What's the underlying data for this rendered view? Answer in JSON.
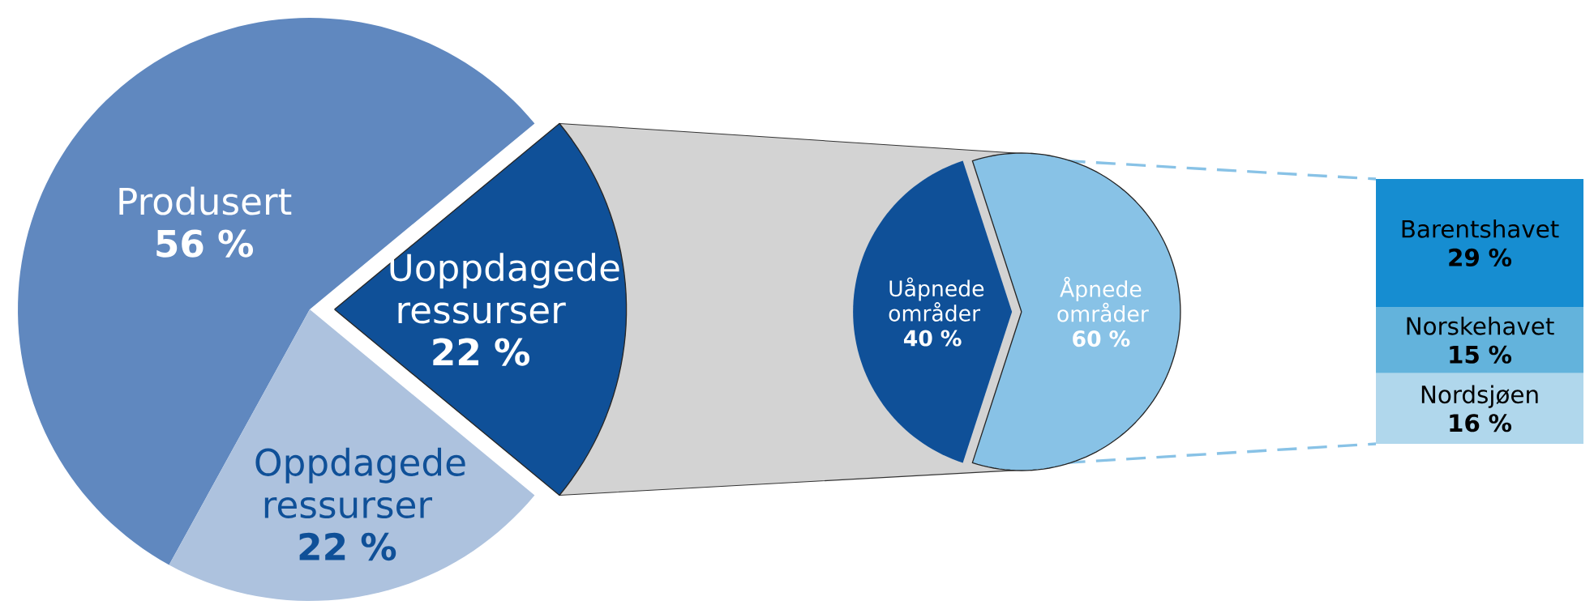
{
  "chart_data": [
    {
      "type": "pie",
      "categories": [
        "Produsert",
        "Oppdagede ressurser",
        "Uoppdagede ressurser"
      ],
      "values": [
        56,
        22,
        22
      ],
      "colors": [
        "#6088bf",
        "#adc2de",
        "#0f5098"
      ],
      "value_labels": [
        "56 %",
        "22 %",
        "22 %"
      ]
    },
    {
      "type": "pie",
      "categories": [
        "Uåpnede områder",
        "Åpnede områder"
      ],
      "values": [
        40,
        60
      ],
      "colors": [
        "#0f5098",
        "#88c2e6"
      ],
      "value_labels": [
        "40 %",
        "60 %"
      ]
    },
    {
      "type": "bar",
      "stacked": true,
      "categories": [
        null
      ],
      "series": [
        {
          "name": "Nordsjøen",
          "color": "#b0d7ec",
          "values": [
            16
          ],
          "value_labels": [
            "16 %"
          ]
        },
        {
          "name": "Norskehavet",
          "color": "#63b3dc",
          "values": [
            15
          ],
          "value_labels": [
            "15 %"
          ]
        },
        {
          "name": "Barentshavet",
          "color": "#168dd1",
          "values": [
            29
          ],
          "value_labels": [
            "29 %"
          ]
        }
      ]
    }
  ]
}
